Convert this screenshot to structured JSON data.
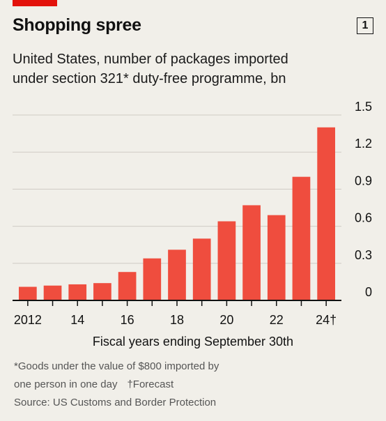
{
  "header": {
    "title": "Shopping spree",
    "chart_number": "1"
  },
  "subtitle_line1": "United States, number of packages imported",
  "subtitle_line2": "under section 321* duty-free programme, bn",
  "footnotes": {
    "line1": "*Goods under the value of $800 imported by",
    "line2a": "one person in one day",
    "line2b": "†Forecast",
    "source": "Source: US Customs and Border Protection"
  },
  "colors": {
    "bar": "#ef4d3e",
    "grid": "#cfcbc4",
    "axis": "#111111",
    "background": "#f1efe9",
    "brand": "#e3120b"
  },
  "chart_data": {
    "type": "bar",
    "title": "Shopping spree",
    "subtitle": "United States, number of packages imported under section 321* duty-free programme, bn",
    "categories": [
      "2012",
      "2013",
      "2014",
      "2015",
      "2016",
      "2017",
      "2018",
      "2019",
      "2020",
      "2021",
      "2022",
      "2023",
      "2024"
    ],
    "values": [
      0.11,
      0.12,
      0.13,
      0.14,
      0.23,
      0.34,
      0.41,
      0.5,
      0.64,
      0.77,
      0.69,
      1.0,
      1.4
    ],
    "x_tick_labels": [
      "2012",
      "",
      "14",
      "",
      "16",
      "",
      "18",
      "",
      "20",
      "",
      "22",
      "",
      "24†"
    ],
    "y_ticks": [
      0,
      0.3,
      0.6,
      0.9,
      1.2,
      1.5
    ],
    "y_tick_labels": [
      "0",
      "0.3",
      "0.6",
      "0.9",
      "1.2",
      "1.5"
    ],
    "ylim": [
      0,
      1.5
    ],
    "xlabel": "Fiscal years ending September 30th",
    "ylabel": "",
    "y_axis_position": "right",
    "grid": true
  }
}
